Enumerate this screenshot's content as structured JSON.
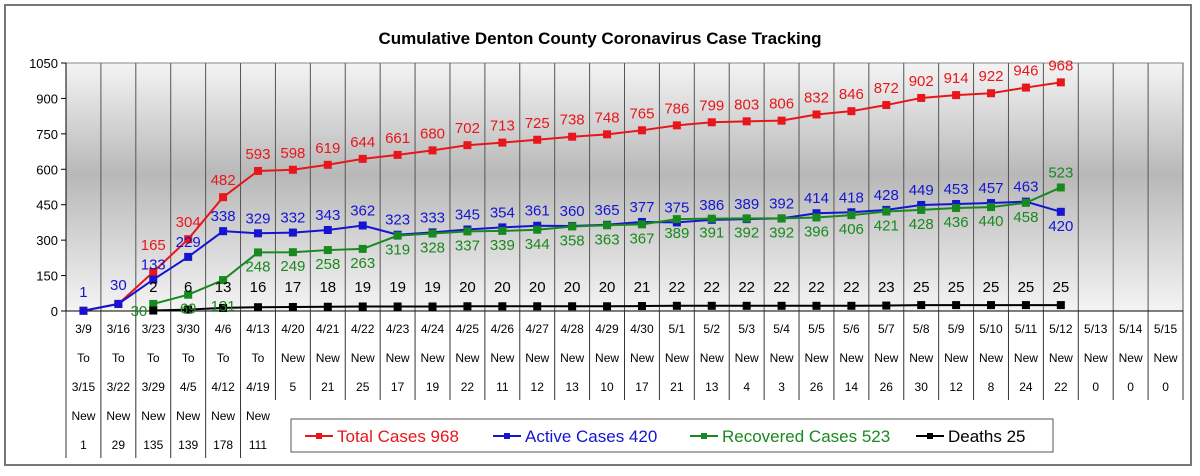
{
  "chart_data": {
    "type": "line",
    "title": "Cumulative Denton County Coronavirus Case Tracking",
    "xlabel": "",
    "ylabel": "",
    "ylim": [
      0,
      1050
    ],
    "yticks": [
      0,
      150,
      300,
      450,
      600,
      750,
      900,
      1050
    ],
    "grid": "vertical",
    "legend_position": "bottom",
    "categories": [
      {
        "l1": "3/9",
        "l2": "To",
        "l3": "3/15",
        "l4": "New",
        "l5": "1"
      },
      {
        "l1": "3/16",
        "l2": "To",
        "l3": "3/22",
        "l4": "New",
        "l5": "29"
      },
      {
        "l1": "3/23",
        "l2": "To",
        "l3": "3/29",
        "l4": "New",
        "l5": "135"
      },
      {
        "l1": "3/30",
        "l2": "To",
        "l3": "4/5",
        "l4": "New",
        "l5": "139"
      },
      {
        "l1": "4/6",
        "l2": "To",
        "l3": "4/12",
        "l4": "New",
        "l5": "178"
      },
      {
        "l1": "4/13",
        "l2": "To",
        "l3": "4/19",
        "l4": "New",
        "l5": "111"
      },
      {
        "l1": "4/20",
        "l2": "New",
        "l3": "5"
      },
      {
        "l1": "4/21",
        "l2": "New",
        "l3": "21"
      },
      {
        "l1": "4/22",
        "l2": "New",
        "l3": "25"
      },
      {
        "l1": "4/23",
        "l2": "New",
        "l3": "17"
      },
      {
        "l1": "4/24",
        "l2": "New",
        "l3": "19"
      },
      {
        "l1": "4/25",
        "l2": "New",
        "l3": "22"
      },
      {
        "l1": "4/26",
        "l2": "New",
        "l3": "11"
      },
      {
        "l1": "4/27",
        "l2": "New",
        "l3": "12"
      },
      {
        "l1": "4/28",
        "l2": "New",
        "l3": "13"
      },
      {
        "l1": "4/29",
        "l2": "New",
        "l3": "10"
      },
      {
        "l1": "4/30",
        "l2": "New",
        "l3": "17"
      },
      {
        "l1": "5/1",
        "l2": "New",
        "l3": "21"
      },
      {
        "l1": "5/2",
        "l2": "New",
        "l3": "13"
      },
      {
        "l1": "5/3",
        "l2": "New",
        "l3": "4"
      },
      {
        "l1": "5/4",
        "l2": "New",
        "l3": "3"
      },
      {
        "l1": "5/5",
        "l2": "New",
        "l3": "26"
      },
      {
        "l1": "5/6",
        "l2": "New",
        "l3": "14"
      },
      {
        "l1": "5/7",
        "l2": "New",
        "l3": "26"
      },
      {
        "l1": "5/8",
        "l2": "New",
        "l3": "30"
      },
      {
        "l1": "5/9",
        "l2": "New",
        "l3": "12"
      },
      {
        "l1": "5/10",
        "l2": "New",
        "l3": "8"
      },
      {
        "l1": "5/11",
        "l2": "New",
        "l3": "24"
      },
      {
        "l1": "5/12",
        "l2": "New",
        "l3": "22"
      },
      {
        "l1": "5/13",
        "l2": "New",
        "l3": "0"
      },
      {
        "l1": "5/14",
        "l2": "New",
        "l3": "0"
      },
      {
        "l1": "5/15",
        "l2": "New",
        "l3": "0"
      }
    ],
    "series": [
      {
        "name": "Total Cases 968",
        "color": "#e8161b",
        "label_pos": "above",
        "values": [
          1,
          30,
          165,
          304,
          482,
          593,
          598,
          619,
          644,
          661,
          680,
          702,
          713,
          725,
          738,
          748,
          765,
          786,
          799,
          803,
          806,
          832,
          846,
          872,
          902,
          914,
          922,
          946,
          968,
          null,
          null,
          null
        ],
        "show_labels_from": 2
      },
      {
        "name": "Active Cases 420",
        "color": "#1414d2",
        "label_pos": "above",
        "values": [
          1,
          30,
          133,
          229,
          338,
          329,
          332,
          343,
          362,
          323,
          333,
          345,
          354,
          361,
          360,
          365,
          377,
          375,
          386,
          389,
          392,
          414,
          418,
          428,
          449,
          453,
          457,
          463,
          420,
          null,
          null,
          null
        ],
        "show_labels_from": 0
      },
      {
        "name": "Recovered Cases 523",
        "color": "#18891e",
        "label_pos": "below",
        "values": [
          null,
          null,
          30,
          69,
          131,
          248,
          249,
          258,
          263,
          319,
          328,
          337,
          339,
          344,
          358,
          363,
          367,
          389,
          391,
          392,
          392,
          396,
          406,
          421,
          428,
          436,
          440,
          458,
          523,
          null,
          null,
          null
        ],
        "show_labels_from": 2
      },
      {
        "name": "Deaths 25",
        "color": "#000000",
        "label_pos": "above",
        "values": [
          null,
          null,
          2,
          6,
          13,
          16,
          17,
          18,
          19,
          19,
          19,
          20,
          20,
          20,
          20,
          20,
          21,
          22,
          22,
          22,
          22,
          22,
          22,
          23,
          25,
          25,
          25,
          25,
          25,
          null,
          null,
          null
        ],
        "show_labels_from": 2
      }
    ]
  }
}
